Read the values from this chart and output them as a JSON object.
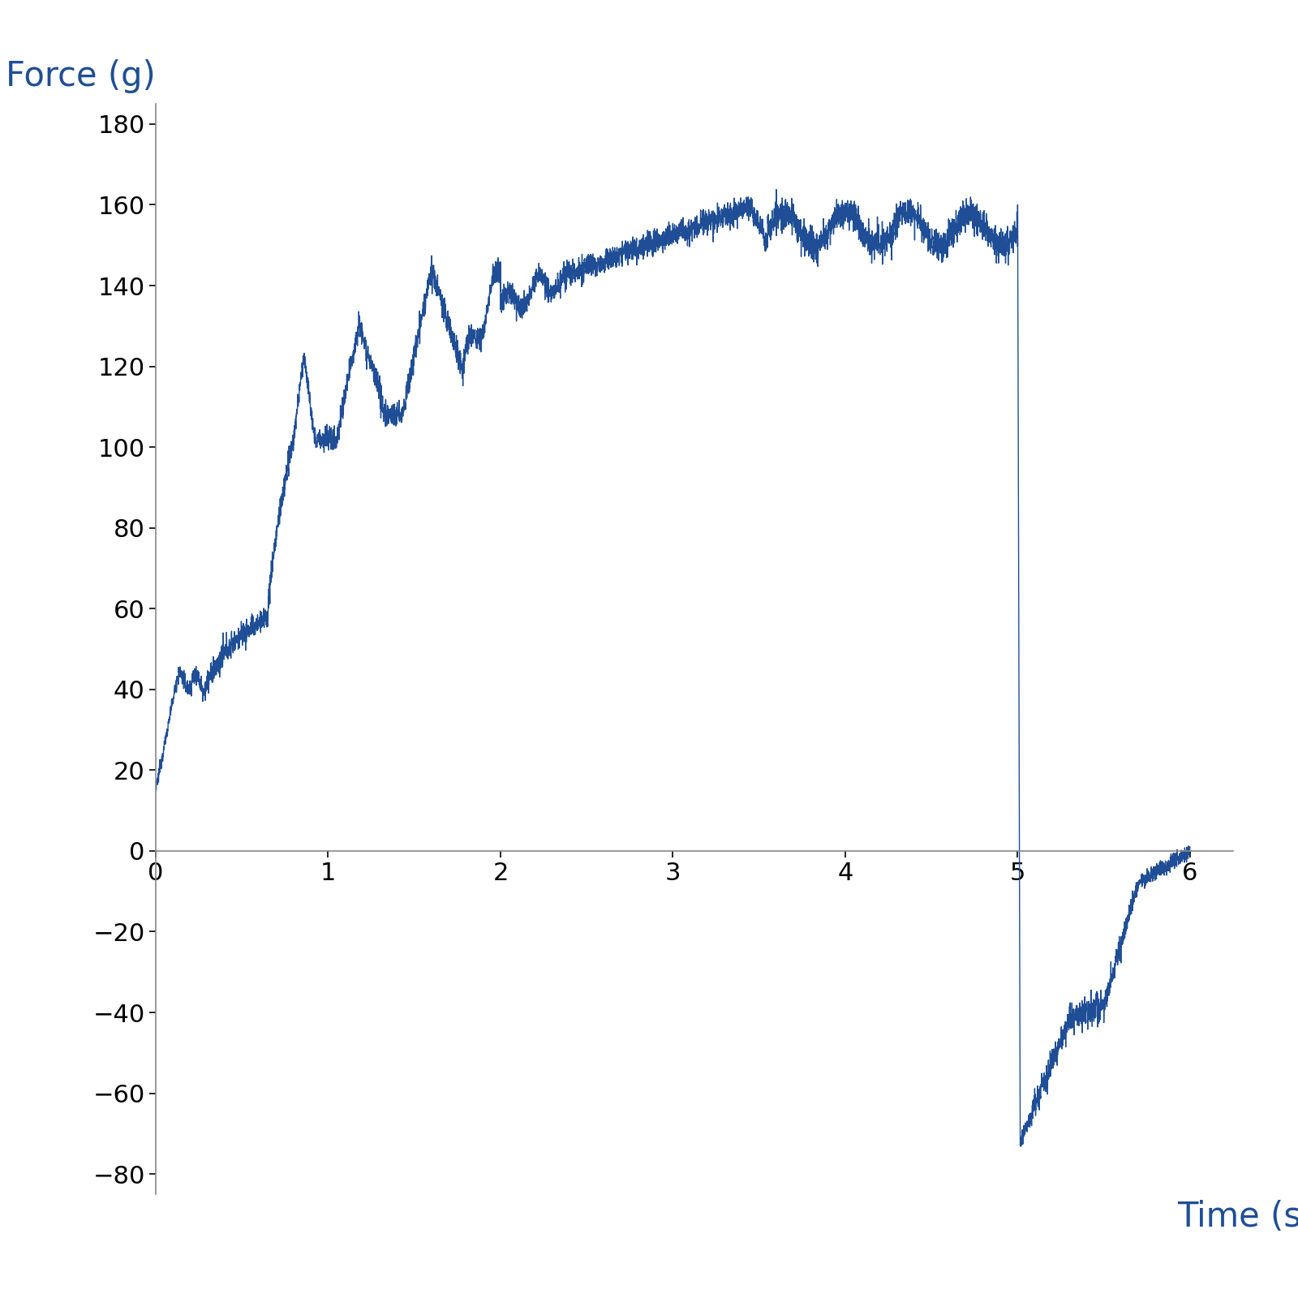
{
  "xlabel": "Time (sec)",
  "ylabel": "Force (g)",
  "line_color": "#1F4E96",
  "ylabel_color": "#1F4E96",
  "xlabel_color": "#1F4E96",
  "axis_color": "#888888",
  "tick_color": "#000000",
  "background_color": "#ffffff",
  "xlim": [
    0,
    6.25
  ],
  "ylim": [
    -85,
    185
  ],
  "xticks": [
    0,
    1,
    2,
    3,
    4,
    5,
    6
  ],
  "yticks": [
    -80,
    -60,
    -40,
    -20,
    0,
    20,
    40,
    60,
    80,
    100,
    120,
    140,
    160,
    180
  ],
  "figsize": [
    16,
    16
  ],
  "dpi": 100
}
